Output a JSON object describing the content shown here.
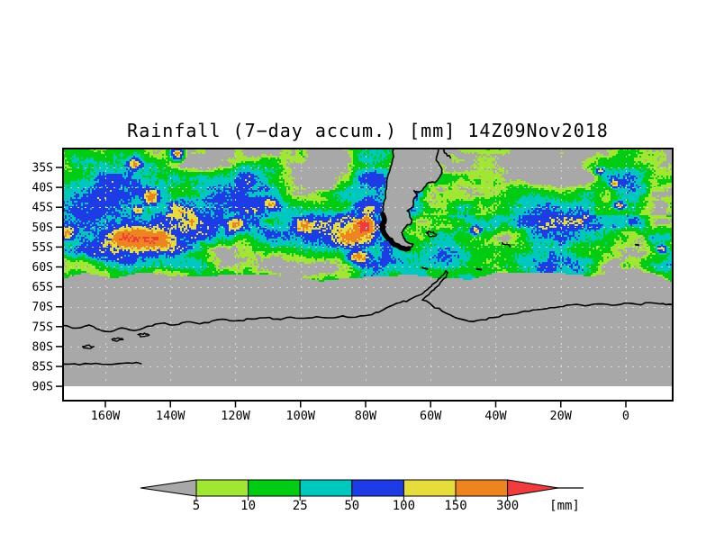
{
  "title": "Rainfall (7−day accum.) [mm] 14Z09Nov2018",
  "axes": {
    "lat_labels": [
      "35S",
      "40S",
      "45S",
      "50S",
      "55S",
      "60S",
      "65S",
      "70S",
      "75S",
      "80S",
      "85S",
      "90S"
    ],
    "lon_labels": [
      "160W",
      "140W",
      "120W",
      "100W",
      "80W",
      "60W",
      "40W",
      "20W",
      "0"
    ]
  },
  "colorbar": {
    "tick_labels": [
      "5",
      "10",
      "25",
      "50",
      "100",
      "150",
      "300"
    ],
    "unit_label": "[mm]",
    "below_min_color": "#a8a8a8",
    "above_max_color": "#f03c3c",
    "segment_colors": [
      "#a0e632",
      "#00cc14",
      "#00c8be",
      "#1e3ce6",
      "#e6dc3c",
      "#ee8420"
    ]
  },
  "colors": {
    "background": "#ffffff",
    "frame": "#000000",
    "no_data": "#a8a8a8",
    "land": "#a8a8a8",
    "gridline": "#d8d8d8",
    "coastline": "#000000",
    "text": "#000000",
    "void_south": "#ffffff"
  },
  "chart_data": {
    "type": "heatmap",
    "title": "Rainfall (7−day accum.) [mm] 14Z09Nov2018",
    "variable": "7-day accumulated rainfall",
    "unit": "mm",
    "valid_time": "14Z 09 Nov 2018",
    "extent": {
      "lon_min": -173,
      "lon_max": 14.4,
      "lat_min": -90,
      "lat_max": -30.25
    },
    "lat_tick_values": [
      -35,
      -40,
      -45,
      -50,
      -55,
      -60,
      -65,
      -70,
      -75,
      -80,
      -85,
      -90
    ],
    "lon_tick_values": [
      -160,
      -140,
      -120,
      -100,
      -80,
      -60,
      -40,
      -20,
      0
    ],
    "levels_mm": [
      5,
      10,
      25,
      50,
      100,
      150,
      300
    ],
    "palette": [
      {
        "range": "< 5",
        "color": "#a8a8a8"
      },
      {
        "range": "5-10",
        "color": "#a0e632"
      },
      {
        "range": "10-25",
        "color": "#00cc14"
      },
      {
        "range": "25-50",
        "color": "#00c8be"
      },
      {
        "range": "50-100",
        "color": "#1e3ce6"
      },
      {
        "range": "100-150",
        "color": "#e6dc3c"
      },
      {
        "range": "150-300",
        "color": "#ee8420"
      },
      {
        "range": "> 300",
        "color": "#f03c3c"
      }
    ],
    "no_data_note": "Uniform gray south of ~61-64S (sea-ice zone) down to 90S; blank white margin below 90S; dry gray patches in subtropics and east of Argentina",
    "storm_track_note": "Zonal band of 10-100 mm (green/cyan/blue) roughly 38S-60S across the whole domain",
    "features": [
      {
        "desc": "intense storm, core > 300 mm, west of southern Chile",
        "lon": -80.5,
        "lat": -49.8,
        "rlon": 2.2,
        "rlat": 1.5,
        "amp": 430
      },
      {
        "lon": -85,
        "lat": -52.5,
        "rlon": 4.5,
        "rlat": 2.2,
        "amp": 170
      },
      {
        "lon": -82,
        "lat": -57.5,
        "rlon": 3,
        "rlat": 1.5,
        "amp": 150
      },
      {
        "desc": "150-300 mm swath, central South Pacific",
        "lon": -146,
        "lat": -53.5,
        "rlon": 6,
        "rlat": 2.2,
        "amp": 185
      },
      {
        "lon": -154,
        "lat": -52.5,
        "rlon": 4,
        "rlat": 1.8,
        "amp": 160
      },
      {
        "lon": -172,
        "lat": -51.5,
        "rlon": 2.5,
        "rlat": 1.5,
        "amp": 150
      },
      {
        "lon": -138,
        "lat": -31.5,
        "rlon": 1.6,
        "rlat": 1.4,
        "amp": 160
      },
      {
        "lon": -146,
        "lat": -42.5,
        "rlon": 2,
        "rlat": 1.5,
        "amp": 175
      },
      {
        "lon": -150,
        "lat": -45.8,
        "rlon": 1.5,
        "rlat": 1,
        "amp": 130
      },
      {
        "lon": -151,
        "lat": -34,
        "rlon": 2,
        "rlat": 1.3,
        "amp": 140
      },
      {
        "lon": -120,
        "lat": -49.5,
        "rlon": 2.2,
        "rlat": 1.4,
        "amp": 150
      },
      {
        "lon": -99,
        "lat": -49.5,
        "rlon": 2.5,
        "rlat": 1.5,
        "amp": 150
      },
      {
        "lon": -109,
        "lat": -44,
        "rlon": 1.5,
        "rlat": 1,
        "amp": 110
      },
      {
        "lon": -8,
        "lat": -36,
        "rlon": 1.2,
        "rlat": 0.8,
        "amp": 115
      },
      {
        "lon": -3.5,
        "lat": -39,
        "rlon": 1.2,
        "rlat": 0.8,
        "amp": 115
      },
      {
        "lon": -2,
        "lat": -44.5,
        "rlon": 1.6,
        "rlat": 0.9,
        "amp": 125
      },
      {
        "lon": 11,
        "lat": -55.5,
        "rlon": 1.4,
        "rlat": 0.9,
        "amp": 135
      },
      {
        "lon": -46,
        "lat": -50.8,
        "rlon": 1.5,
        "rlat": 1,
        "amp": 120
      },
      {
        "desc": "broad 50-100 mm region",
        "lon": -163,
        "lat": -44,
        "rlon": 14,
        "rlat": 6,
        "amp": 60
      },
      {
        "lon": -150,
        "lat": -53,
        "rlon": 12,
        "rlat": 4,
        "amp": 70
      },
      {
        "lon": -95,
        "lat": -51,
        "rlon": 12,
        "rlat": 5,
        "amp": 60
      },
      {
        "lon": -120,
        "lat": -42,
        "rlon": 10,
        "rlat": 4,
        "amp": 45
      },
      {
        "lon": -25,
        "lat": -46,
        "rlon": 10,
        "rlat": 4,
        "amp": 45
      },
      {
        "lon": -55,
        "lat": -57,
        "rlon": 8,
        "rlat": 3,
        "amp": 50
      }
    ],
    "map_layers": {
      "coastlines": {
        "sa_west": [
          [
            -71.4,
            -30.3
          ],
          [
            -71.7,
            -33
          ],
          [
            -72.6,
            -36
          ],
          [
            -73.5,
            -39
          ],
          [
            -73.9,
            -42
          ],
          [
            -74.5,
            -44.5
          ],
          [
            -74.9,
            -46.5
          ],
          [
            -74.3,
            -48
          ],
          [
            -75.2,
            -49.8
          ],
          [
            -74.4,
            -51.5
          ],
          [
            -73.2,
            -52.8
          ],
          [
            -71.5,
            -53.9
          ],
          [
            -69.5,
            -54.9
          ],
          [
            -67.5,
            -55.6
          ]
        ],
        "sa_east": [
          [
            -57.6,
            -30.3
          ],
          [
            -58.3,
            -33.2
          ],
          [
            -56.9,
            -34.8
          ],
          [
            -56.6,
            -36.5
          ],
          [
            -58.6,
            -38.8
          ],
          [
            -61.2,
            -39.1
          ],
          [
            -62.6,
            -40.8
          ],
          [
            -64.4,
            -41
          ],
          [
            -65.1,
            -40.8
          ],
          [
            -64.2,
            -42.3
          ],
          [
            -65.1,
            -42.7
          ],
          [
            -65.4,
            -44.8
          ],
          [
            -67.2,
            -45.9
          ],
          [
            -66.4,
            -47.2
          ],
          [
            -65.8,
            -48.7
          ],
          [
            -67.7,
            -50
          ],
          [
            -68.9,
            -51.4
          ],
          [
            -68.4,
            -52.3
          ],
          [
            -67.9,
            -53.3
          ],
          [
            -65.4,
            -54.3
          ],
          [
            -66.8,
            -55.4
          ]
        ],
        "chile_fjords_thick": [
          [
            -74.7,
            -46.8
          ],
          [
            -74.2,
            -48.1
          ],
          [
            -75,
            -49.6
          ],
          [
            -74.5,
            -51
          ],
          [
            -73.5,
            -52.4
          ],
          [
            -72,
            -53.6
          ],
          [
            -70.2,
            -54.6
          ],
          [
            -68.3,
            -55.3
          ],
          [
            -66.8,
            -55.4
          ]
        ],
        "rio_de_la_plata": [
          [
            -56.3,
            -30.3
          ],
          [
            -55.2,
            -31.5
          ],
          [
            -53.9,
            -32.6
          ]
        ],
        "falkland_islands": [
          [
            -61.4,
            -51.4
          ],
          [
            -60.3,
            -51
          ],
          [
            -59.1,
            -51.2
          ],
          [
            -58.2,
            -51.8
          ],
          [
            -59.3,
            -52.2
          ],
          [
            -60.7,
            -52
          ],
          [
            -61.4,
            -51.4
          ]
        ],
        "south_georgia": [
          [
            -38,
            -53.9
          ],
          [
            -36.4,
            -54.4
          ],
          [
            -35.5,
            -54.9
          ]
        ],
        "antarctic_peninsula_west": [
          [
            -55.3,
            -61
          ],
          [
            -56.7,
            -62.3
          ],
          [
            -58,
            -63.6
          ],
          [
            -59.8,
            -64.9
          ],
          [
            -61.7,
            -66.1
          ],
          [
            -63.8,
            -67.2
          ],
          [
            -66.5,
            -68.2
          ],
          [
            -69.5,
            -69
          ],
          [
            -72.5,
            -69.9
          ]
        ],
        "antarctic_peninsula_east": [
          [
            -54.8,
            -61.4
          ],
          [
            -55.9,
            -62.9
          ],
          [
            -57.2,
            -64.3
          ],
          [
            -58.9,
            -65.7
          ],
          [
            -60.6,
            -67
          ],
          [
            -62.5,
            -68.3
          ]
        ],
        "antarctic_peninsula_tip": [
          [
            -55.3,
            -61
          ],
          [
            -54.8,
            -61.4
          ]
        ],
        "antarctic_coast_west": [
          [
            -173,
            -74.7
          ],
          [
            -169,
            -75.4
          ],
          [
            -165,
            -74.6
          ],
          [
            -162,
            -75.7
          ],
          [
            -158.5,
            -76.3
          ],
          [
            -155,
            -75.3
          ],
          [
            -151,
            -76
          ],
          [
            -147,
            -74.9
          ],
          [
            -143,
            -74.2
          ],
          [
            -139,
            -74.6
          ],
          [
            -135,
            -73.8
          ],
          [
            -131,
            -74.3
          ],
          [
            -127,
            -73.5
          ],
          [
            -123,
            -73.2
          ],
          [
            -119,
            -73.5
          ],
          [
            -115,
            -73.1
          ],
          [
            -111,
            -72.8
          ],
          [
            -107,
            -73.1
          ],
          [
            -103,
            -72.6
          ],
          [
            -99,
            -72.9
          ],
          [
            -95,
            -72.5
          ],
          [
            -91,
            -72.8
          ],
          [
            -87,
            -72.3
          ],
          [
            -83,
            -72.6
          ],
          [
            -79,
            -72.1
          ],
          [
            -76,
            -71.4
          ],
          [
            -72.5,
            -69.9
          ]
        ],
        "antarctic_coast_east": [
          [
            -62.5,
            -68.3
          ],
          [
            -59.5,
            -69.7
          ],
          [
            -56.5,
            -71.1
          ],
          [
            -52.5,
            -72.7
          ],
          [
            -48.5,
            -73.6
          ],
          [
            -44.5,
            -73.3
          ],
          [
            -40.5,
            -72.7
          ],
          [
            -36.5,
            -72
          ],
          [
            -32.5,
            -71.4
          ],
          [
            -28.5,
            -70.8
          ],
          [
            -24.5,
            -70.5
          ],
          [
            -20.5,
            -70
          ],
          [
            -16.5,
            -69.5
          ],
          [
            -12.5,
            -69.8
          ],
          [
            -8.5,
            -69.3
          ],
          [
            -4.5,
            -69.6
          ],
          [
            -0.5,
            -69.1
          ],
          [
            3.5,
            -69.4
          ],
          [
            7.5,
            -69
          ],
          [
            11.5,
            -69.2
          ],
          [
            14.5,
            -69.6
          ]
        ],
        "ross_ice_shelf_edge": [
          [
            -173,
            -84.4
          ],
          [
            -168,
            -84.6
          ],
          [
            -163,
            -84.2
          ],
          [
            -158,
            -84.5
          ],
          [
            -153,
            -84.1
          ],
          [
            -149,
            -84.3
          ]
        ],
        "island_loops": [
          [
            [
              -167,
              -80
            ],
            [
              -165,
              -79.6
            ],
            [
              -163.5,
              -80
            ],
            [
              -165.2,
              -80.5
            ],
            [
              -167,
              -80
            ]
          ],
          [
            [
              -158,
              -78.2
            ],
            [
              -156,
              -77.8
            ],
            [
              -154.5,
              -78.3
            ],
            [
              -156.5,
              -78.7
            ],
            [
              -158,
              -78.2
            ]
          ],
          [
            [
              -150,
              -77
            ],
            [
              -148,
              -76.6
            ],
            [
              -146.5,
              -77.1
            ],
            [
              -148.5,
              -77.5
            ],
            [
              -150,
              -77
            ]
          ]
        ],
        "island_dashes": [
          [
            [
              -45.8,
              -60.5
            ],
            [
              -44.5,
              -60.7
            ]
          ],
          [
            [
              -62.5,
              -60.2
            ],
            [
              -61,
              -60.5
            ]
          ],
          [
            [
              3,
              -54.4
            ],
            [
              3.9,
              -54.5
            ]
          ]
        ]
      },
      "gridlines": {
        "lat_step_deg": 5,
        "lon_step_deg": 20,
        "style": "dashed light gray"
      }
    }
  }
}
